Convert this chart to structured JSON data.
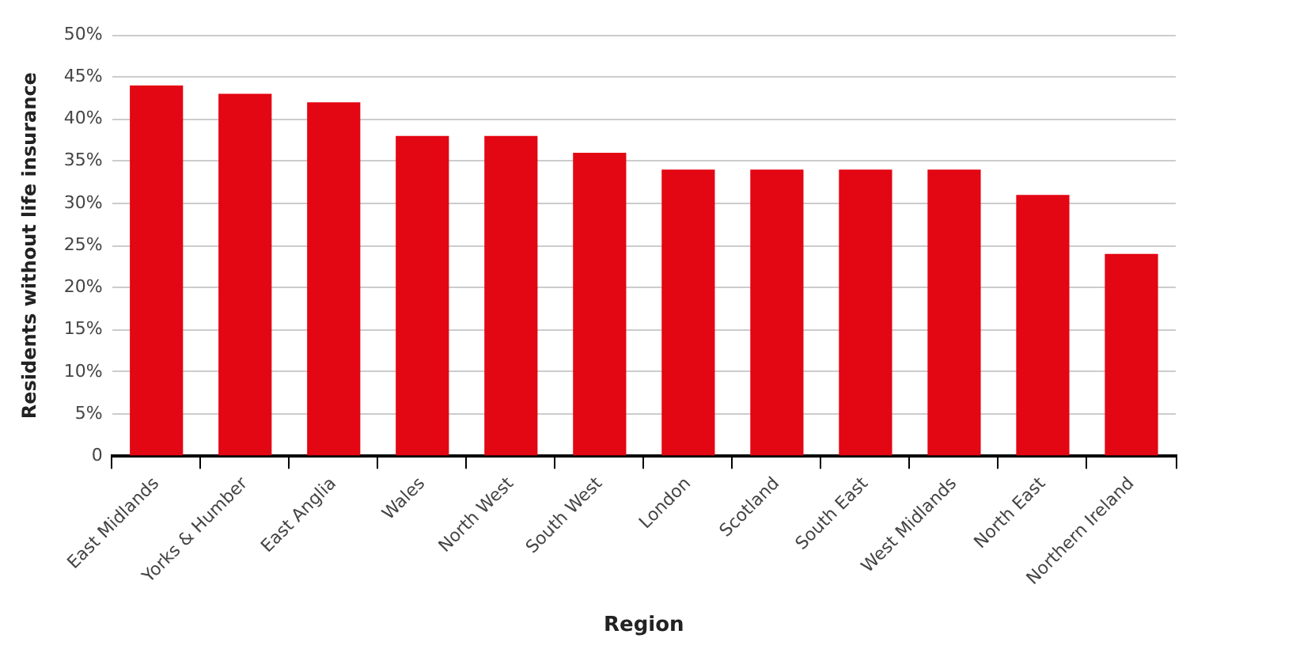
{
  "chart_data": {
    "type": "bar",
    "xlabel": "Region",
    "ylabel": "Residents without life insurance",
    "categories": [
      "East Midlands",
      "Yorks & Humber",
      "East Anglia",
      "Wales",
      "North West",
      "South West",
      "London",
      "Scotland",
      "South East",
      "West Midlands",
      "North East",
      "Northern Ireland"
    ],
    "values": [
      44,
      43,
      42,
      38,
      38,
      36,
      34,
      34,
      34,
      34,
      31,
      24
    ],
    "color": "#e30613",
    "ylim": [
      0,
      50
    ],
    "yticks": [
      {
        "value": 0,
        "label": "0"
      },
      {
        "value": 5,
        "label": "5%"
      },
      {
        "value": 10,
        "label": "10%"
      },
      {
        "value": 15,
        "label": "15%"
      },
      {
        "value": 20,
        "label": "20%"
      },
      {
        "value": 25,
        "label": "25%"
      },
      {
        "value": 30,
        "label": "30%"
      },
      {
        "value": 35,
        "label": "35%"
      },
      {
        "value": 40,
        "label": "40%"
      },
      {
        "value": 45,
        "label": "45%"
      },
      {
        "value": 50,
        "label": "50%"
      }
    ],
    "grid": "y",
    "legend": false
  }
}
